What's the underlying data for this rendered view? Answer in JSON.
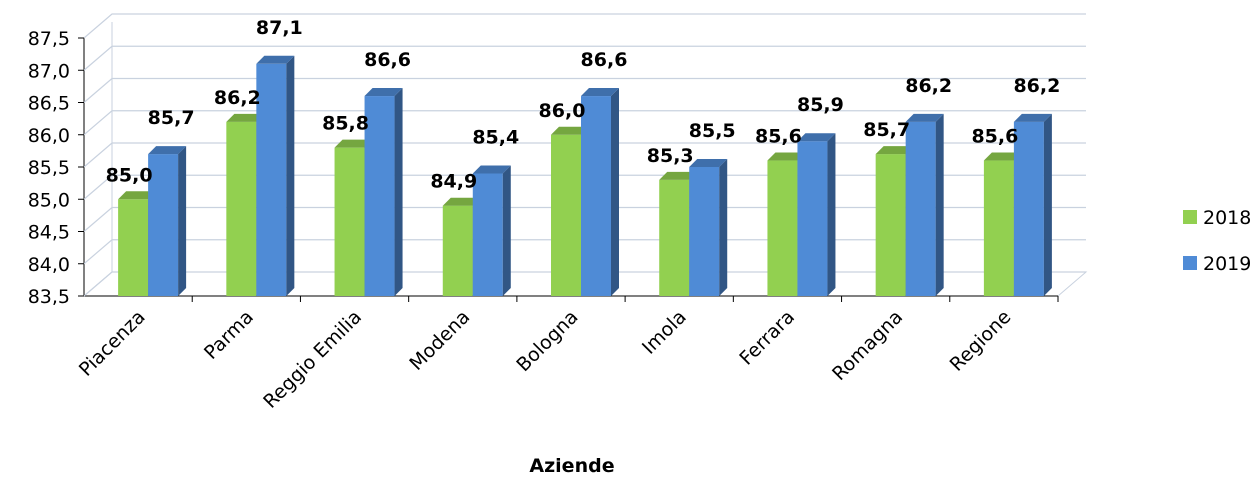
{
  "chart_data": {
    "type": "bar",
    "title": "",
    "xlabel": "Aziende",
    "ylabel": "",
    "ylim": [
      83.5,
      87.5
    ],
    "ytick_step": 0.5,
    "ytick_labels": [
      "83,5",
      "84,0",
      "84,5",
      "85,0",
      "85,5",
      "86,0",
      "86,5",
      "87,0",
      "87,5"
    ],
    "categories": [
      "Piacenza",
      "Parma",
      "Reggio Emilia",
      "Modena",
      "Bologna",
      "Imola",
      "Ferrara",
      "Romagna",
      "Regione"
    ],
    "series": [
      {
        "name": "2018",
        "color": "#92D050",
        "values": [
          85.0,
          86.2,
          85.8,
          84.9,
          86.0,
          85.3,
          85.6,
          85.7,
          85.6
        ],
        "labels": [
          "85,0",
          "86,2",
          "85,8",
          "84,9",
          "86,0",
          "85,3",
          "85,6",
          "85,7",
          "85,6"
        ]
      },
      {
        "name": "2019",
        "color": "#4F8BD6",
        "values": [
          85.7,
          87.1,
          86.6,
          85.4,
          86.6,
          85.5,
          85.9,
          86.2,
          86.2
        ],
        "labels": [
          "85,7",
          "87,1",
          "86,6",
          "85,4",
          "86,6",
          "85,5",
          "85,9",
          "86,2",
          "86,2"
        ]
      }
    ],
    "grid": true,
    "legend_position": "right",
    "style": "3d-clustered-column"
  }
}
